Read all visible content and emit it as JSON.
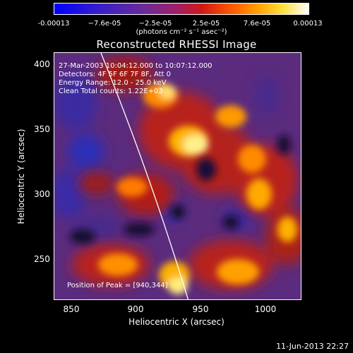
{
  "colorbar": {
    "ticks": [
      "-0.00013",
      "−7.6e-05",
      "−2.5e-05",
      "2.5e-05",
      "7.6e-05",
      "0.00013"
    ],
    "unit": "(photons cm⁻² s⁻¹ asec⁻²)"
  },
  "image": {
    "title": "Reconstructed RHESSI Image",
    "info_lines": [
      "27-Mar-2003 10:04:12.000 to 10:07:12.000",
      "Detectors: 4F 5F 6F 7F 8F, Att 0",
      "Energy Range: 12.0 - 25.0 keV",
      "Clean     Total counts: 1.22E+03"
    ],
    "peak_label": "Position of Peak = [940,344]"
  },
  "axes": {
    "xlabel": "Heliocentric X (arcsec)",
    "ylabel": "Heliocentric Y (arcsec)",
    "xticks": [
      "850",
      "900",
      "950",
      "1000"
    ],
    "yticks": [
      "400",
      "350",
      "300",
      "250"
    ]
  },
  "footer": {
    "timestamp": "11-Jun-2013 22:27"
  },
  "colors": {
    "background": "#000000",
    "foreground": "#ffffff"
  }
}
